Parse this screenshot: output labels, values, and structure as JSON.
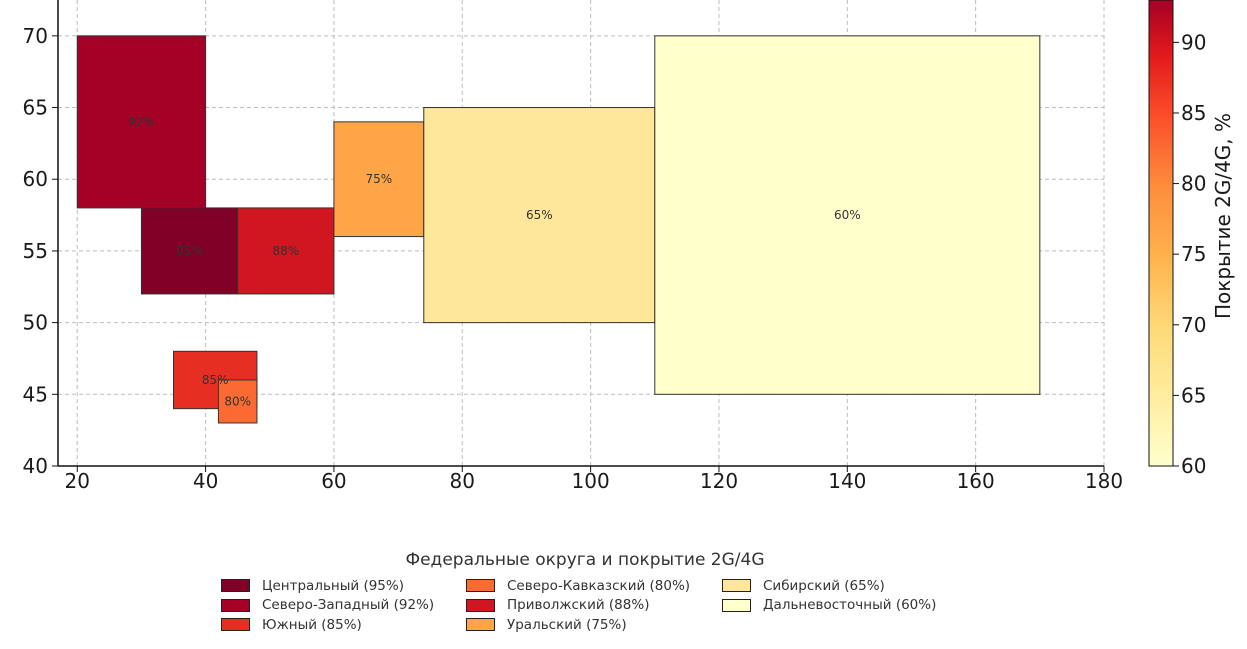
{
  "chart_data": {
    "type": "rectangle-map",
    "title": "",
    "xlabel": "",
    "ylabel": "",
    "xlim": [
      17,
      180
    ],
    "ylim": [
      40,
      72.5
    ],
    "xticks": [
      20,
      40,
      60,
      80,
      100,
      120,
      140,
      160,
      180
    ],
    "yticks": [
      40,
      45,
      50,
      55,
      60,
      65,
      70
    ],
    "grid": true,
    "colorbar": {
      "label": "Покрытие 2G/4G, %",
      "range": [
        60,
        93
      ],
      "ticks": [
        60,
        65,
        70,
        75,
        80,
        85,
        90
      ],
      "colormap": "YlOrRd"
    },
    "regions": [
      {
        "name": "Северо-Западный",
        "x0": 20,
        "x1": 40,
        "y0": 58,
        "y1": 70,
        "value": 92,
        "label": "92%",
        "color": "#a50026"
      },
      {
        "name": "Центральный",
        "x0": 30,
        "x1": 45,
        "y0": 52,
        "y1": 58,
        "value": 95,
        "label": "95%",
        "color": "#800026"
      },
      {
        "name": "Приволжский",
        "x0": 45,
        "x1": 60,
        "y0": 52,
        "y1": 58,
        "value": 88,
        "label": "88%",
        "color": "#d01620"
      },
      {
        "name": "Уральский",
        "x0": 60,
        "x1": 74,
        "y0": 56,
        "y1": 64,
        "value": 75,
        "label": "75%",
        "color": "#fea647"
      },
      {
        "name": "Сибирский",
        "x0": 74,
        "x1": 110,
        "y0": 50,
        "y1": 65,
        "value": 65,
        "label": "65%",
        "color": "#fee69a"
      },
      {
        "name": "Дальневосточный",
        "x0": 110,
        "x1": 170,
        "y0": 45,
        "y1": 70,
        "value": 60,
        "label": "60%",
        "color": "#ffffcc"
      },
      {
        "name": "Южный",
        "x0": 35,
        "x1": 48,
        "y0": 44,
        "y1": 48,
        "value": 85,
        "label": "85%",
        "color": "#e62e22"
      },
      {
        "name": "Северо-Кавказский",
        "x0": 42,
        "x1": 48,
        "y0": 43,
        "y1": 46,
        "value": 80,
        "label": "80%",
        "color": "#fc6a34"
      }
    ],
    "legend": {
      "title": "Федеральные округа и покрытие 2G/4G",
      "placement": "bottom-center",
      "items": [
        {
          "label": "Центральный (95%)",
          "color": "#800026"
        },
        {
          "label": "Северо-Западный (92%)",
          "color": "#a50026"
        },
        {
          "label": "Южный (85%)",
          "color": "#e62e22"
        },
        {
          "label": "Северо-Кавказский (80%)",
          "color": "#fc6a34"
        },
        {
          "label": "Приволжский (88%)",
          "color": "#d01620"
        },
        {
          "label": "Уральский (75%)",
          "color": "#fea647"
        },
        {
          "label": "Сибирский (65%)",
          "color": "#fee69a"
        },
        {
          "label": "Дальневосточный (60%)",
          "color": "#ffffcc"
        }
      ]
    }
  }
}
